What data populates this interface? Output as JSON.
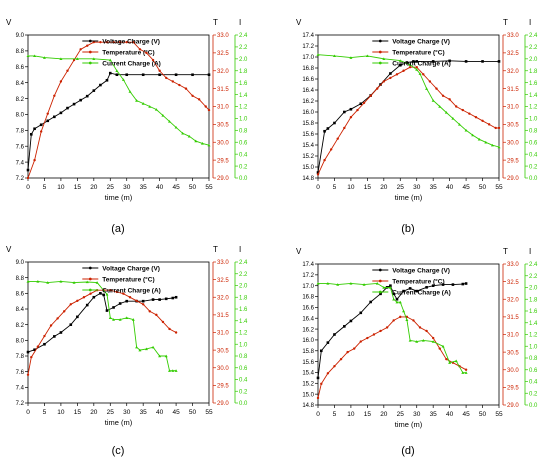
{
  "colors": {
    "voltage": "#000000",
    "temperature": "#cc2200",
    "current": "#33cc00",
    "axis": "#000000"
  },
  "chart_data": [
    {
      "type": "line",
      "panel_label": "(a)",
      "xlabel": "time (m)",
      "axis_units": {
        "voltage": "V",
        "temperature": "T",
        "current": "I"
      },
      "legend_position": "top-center",
      "xlim": [
        0,
        55
      ],
      "xticks": [
        0,
        5,
        10,
        15,
        20,
        25,
        30,
        35,
        40,
        45,
        50,
        55
      ],
      "ylim_voltage": [
        7.2,
        9.0
      ],
      "yticks_voltage": [
        "7.2",
        "7.4",
        "7.6",
        "7.8",
        "8.0",
        "8.2",
        "8.4",
        "8.6",
        "8.8",
        "9.0"
      ],
      "ylim_temperature": [
        29.0,
        33.0
      ],
      "yticks_temperature": [
        "29.0",
        "29.5",
        "30.0",
        "30.5",
        "31.0",
        "31.5",
        "32.0",
        "32.5",
        "33.0"
      ],
      "ylim_current": [
        0.0,
        2.4
      ],
      "yticks_current": [
        "0.0",
        "0.2",
        "0.4",
        "0.6",
        "0.8",
        "1.0",
        "1.2",
        "1.4",
        "1.6",
        "1.8",
        "2.0",
        "2.2",
        "2.4"
      ],
      "series": [
        {
          "name": "Voltage Charge (V)",
          "axis": "voltage",
          "x": [
            0,
            1,
            2,
            4,
            6,
            8,
            10,
            12,
            14,
            16,
            18,
            20,
            22,
            24,
            25,
            27,
            30,
            35,
            40,
            45,
            50,
            55
          ],
          "y": [
            7.3,
            7.75,
            7.82,
            7.87,
            7.92,
            7.97,
            8.02,
            8.08,
            8.13,
            8.18,
            8.23,
            8.3,
            8.37,
            8.43,
            8.52,
            8.5,
            8.5,
            8.5,
            8.5,
            8.5,
            8.5,
            8.5
          ]
        },
        {
          "name": "Temperature (°C)",
          "axis": "temperature",
          "x": [
            0,
            2,
            4,
            6,
            8,
            10,
            12,
            14,
            16,
            18,
            20,
            22,
            24,
            26,
            28,
            30,
            32,
            34,
            36,
            38,
            40,
            42,
            44,
            46,
            48,
            50,
            52,
            54,
            55
          ],
          "y": [
            29.0,
            29.5,
            30.3,
            30.8,
            31.3,
            31.7,
            32.0,
            32.3,
            32.6,
            32.7,
            32.8,
            32.8,
            32.8,
            32.8,
            32.8,
            32.8,
            32.8,
            32.6,
            32.5,
            32.3,
            32.0,
            31.8,
            31.7,
            31.6,
            31.5,
            31.3,
            31.2,
            31.0,
            30.9
          ]
        },
        {
          "name": "Current Charge (A)",
          "axis": "current",
          "x": [
            0,
            2,
            5,
            10,
            15,
            20,
            25,
            27,
            29,
            31,
            33,
            35,
            37,
            39,
            41,
            43,
            45,
            47,
            49,
            51,
            53,
            55
          ],
          "y": [
            2.05,
            2.05,
            2.02,
            2.0,
            2.0,
            2.0,
            1.98,
            1.8,
            1.65,
            1.45,
            1.3,
            1.25,
            1.2,
            1.15,
            1.05,
            0.95,
            0.85,
            0.75,
            0.7,
            0.62,
            0.58,
            0.55
          ]
        }
      ]
    },
    {
      "type": "line",
      "panel_label": "(b)",
      "xlabel": "time (m)",
      "axis_units": {
        "voltage": "V",
        "temperature": "T",
        "current": "I"
      },
      "legend_position": "top-center",
      "xlim": [
        0,
        55
      ],
      "xticks": [
        0,
        5,
        10,
        15,
        20,
        25,
        30,
        35,
        40,
        45,
        50,
        55
      ],
      "ylim_voltage": [
        14.8,
        17.4
      ],
      "yticks_voltage": [
        "14.8",
        "15.0",
        "15.2",
        "15.4",
        "15.6",
        "15.8",
        "16.0",
        "16.2",
        "16.4",
        "16.6",
        "16.8",
        "17.0",
        "17.2",
        "17.4"
      ],
      "ylim_temperature": [
        29.0,
        33.0
      ],
      "yticks_temperature": [
        "29.0",
        "29.5",
        "30.0",
        "30.5",
        "31.0",
        "31.5",
        "32.0",
        "32.5",
        "33.0"
      ],
      "ylim_current": [
        0.0,
        2.4
      ],
      "yticks_current": [
        "0.0",
        "0.2",
        "0.4",
        "0.6",
        "0.8",
        "1.0",
        "1.2",
        "1.4",
        "1.6",
        "1.8",
        "2.0",
        "2.2",
        "2.4"
      ],
      "series": [
        {
          "name": "Voltage Charge (V)",
          "axis": "voltage",
          "x": [
            0,
            2,
            3,
            5,
            8,
            10,
            13,
            16,
            19,
            22,
            25,
            27,
            29,
            30,
            35,
            40,
            45,
            50,
            55
          ],
          "y": [
            14.9,
            15.65,
            15.7,
            15.8,
            16.0,
            16.05,
            16.15,
            16.3,
            16.5,
            16.7,
            16.85,
            16.9,
            16.92,
            16.92,
            16.92,
            16.93,
            16.92,
            16.92,
            16.92
          ]
        },
        {
          "name": "Temperature (°C)",
          "axis": "temperature",
          "x": [
            0,
            2,
            4,
            6,
            8,
            10,
            12,
            14,
            16,
            18,
            20,
            22,
            24,
            26,
            28,
            30,
            32,
            34,
            36,
            38,
            40,
            42,
            44,
            46,
            48,
            50,
            52,
            54,
            55
          ],
          "y": [
            29.1,
            29.5,
            29.8,
            30.1,
            30.4,
            30.7,
            30.9,
            31.1,
            31.3,
            31.5,
            31.7,
            31.8,
            31.9,
            32.0,
            32.1,
            32.1,
            31.9,
            31.7,
            31.5,
            31.3,
            31.2,
            31.0,
            30.9,
            30.8,
            30.7,
            30.6,
            30.5,
            30.4,
            30.4
          ]
        },
        {
          "name": "Current Charge (A)",
          "axis": "current",
          "x": [
            0,
            5,
            10,
            15,
            20,
            25,
            28,
            30,
            31,
            33,
            35,
            37,
            39,
            41,
            43,
            45,
            47,
            49,
            51,
            53,
            55
          ],
          "y": [
            2.07,
            2.05,
            2.02,
            2.05,
            2.0,
            1.97,
            1.9,
            1.82,
            1.75,
            1.5,
            1.3,
            1.2,
            1.1,
            1.0,
            0.9,
            0.8,
            0.72,
            0.65,
            0.6,
            0.55,
            0.52
          ]
        }
      ]
    },
    {
      "type": "line",
      "panel_label": "(c)",
      "xlabel": "time (m)",
      "axis_units": {
        "voltage": "V",
        "temperature": "T",
        "current": "I"
      },
      "legend_position": "top-center",
      "xlim": [
        0,
        55
      ],
      "xticks": [
        0,
        5,
        10,
        15,
        20,
        25,
        30,
        35,
        40,
        45,
        50,
        55
      ],
      "ylim_voltage": [
        7.2,
        9.0
      ],
      "yticks_voltage": [
        "7.2",
        "7.4",
        "7.6",
        "7.8",
        "8.0",
        "8.2",
        "8.4",
        "8.6",
        "8.8",
        "9.0"
      ],
      "ylim_temperature": [
        29.0,
        33.0
      ],
      "yticks_temperature": [
        "29.0",
        "29.5",
        "30.0",
        "30.5",
        "31.0",
        "31.5",
        "32.0",
        "32.5",
        "33.0"
      ],
      "ylim_current": [
        0.0,
        2.4
      ],
      "yticks_current": [
        "0.0",
        "0.2",
        "0.4",
        "0.6",
        "0.8",
        "1.0",
        "1.2",
        "1.4",
        "1.6",
        "1.8",
        "2.0",
        "2.2",
        "2.4"
      ],
      "series": [
        {
          "name": "Voltage Charge (V)",
          "axis": "voltage",
          "x": [
            0,
            2,
            5,
            8,
            10,
            13,
            15,
            18,
            20,
            22,
            23,
            24,
            26,
            28,
            30,
            33,
            35,
            38,
            40,
            42,
            44,
            45
          ],
          "y": [
            7.85,
            7.88,
            7.95,
            8.05,
            8.1,
            8.2,
            8.3,
            8.45,
            8.55,
            8.6,
            8.58,
            8.38,
            8.42,
            8.47,
            8.5,
            8.5,
            8.5,
            8.52,
            8.52,
            8.53,
            8.54,
            8.55
          ]
        },
        {
          "name": "Temperature (°C)",
          "axis": "temperature",
          "x": [
            0,
            1,
            3,
            5,
            7,
            9,
            11,
            13,
            15,
            17,
            19,
            21,
            23,
            25,
            27,
            29,
            31,
            33,
            35,
            37,
            39,
            41,
            43,
            45
          ],
          "y": [
            29.8,
            30.3,
            30.6,
            30.9,
            31.2,
            31.4,
            31.6,
            31.8,
            31.9,
            32.0,
            32.1,
            32.2,
            32.2,
            32.2,
            32.15,
            32.1,
            32.0,
            31.9,
            31.8,
            31.6,
            31.5,
            31.3,
            31.1,
            31.0
          ]
        },
        {
          "name": "Current Charge (A)",
          "axis": "current",
          "x": [
            0,
            3,
            6,
            10,
            14,
            18,
            21,
            24,
            25,
            26,
            28,
            30,
            32,
            33,
            34,
            36,
            38,
            40,
            42,
            43,
            44,
            45
          ],
          "y": [
            2.07,
            2.07,
            2.05,
            2.07,
            2.05,
            2.06,
            2.05,
            1.85,
            1.45,
            1.42,
            1.42,
            1.45,
            1.42,
            0.95,
            0.9,
            0.92,
            0.95,
            0.8,
            0.8,
            0.55,
            0.55,
            0.55
          ]
        }
      ]
    },
    {
      "type": "line",
      "panel_label": "(d)",
      "xlabel": "time (m)",
      "axis_units": {
        "voltage": "V",
        "temperature": "T",
        "current": "I"
      },
      "legend_position": "top-center",
      "xlim": [
        0,
        55
      ],
      "xticks": [
        0,
        5,
        10,
        15,
        20,
        25,
        30,
        35,
        40,
        45,
        50,
        55
      ],
      "ylim_voltage": [
        14.8,
        17.4
      ],
      "yticks_voltage": [
        "14.8",
        "15.0",
        "15.2",
        "15.4",
        "15.6",
        "15.8",
        "16.0",
        "16.2",
        "16.4",
        "16.6",
        "16.8",
        "17.0",
        "17.2",
        "17.4"
      ],
      "ylim_temperature": [
        29.0,
        33.0
      ],
      "yticks_temperature": [
        "29.0",
        "29.5",
        "30.0",
        "30.5",
        "31.0",
        "31.5",
        "32.0",
        "32.5",
        "33.0"
      ],
      "ylim_current": [
        0.0,
        2.4
      ],
      "yticks_current": [
        "0.0",
        "0.2",
        "0.4",
        "0.6",
        "0.8",
        "1.0",
        "1.2",
        "1.4",
        "1.6",
        "1.8",
        "2.0",
        "2.2",
        "2.4"
      ],
      "series": [
        {
          "name": "Voltage Charge (V)",
          "axis": "voltage",
          "x": [
            0,
            1,
            3,
            5,
            8,
            10,
            13,
            16,
            19,
            21,
            22,
            23,
            24,
            26,
            28,
            30,
            33,
            35,
            38,
            41,
            44,
            45
          ],
          "y": [
            15.3,
            15.8,
            15.95,
            16.1,
            16.25,
            16.35,
            16.5,
            16.7,
            16.85,
            16.97,
            17.0,
            16.85,
            16.75,
            16.9,
            16.95,
            16.9,
            16.97,
            17.0,
            17.02,
            17.02,
            17.03,
            17.04
          ]
        },
        {
          "name": "Temperature (°C)",
          "axis": "temperature",
          "x": [
            0,
            1,
            3,
            5,
            7,
            9,
            11,
            13,
            15,
            17,
            19,
            21,
            23,
            25,
            27,
            29,
            31,
            33,
            35,
            37,
            39,
            41,
            43,
            45
          ],
          "y": [
            29.2,
            29.6,
            29.9,
            30.1,
            30.3,
            30.5,
            30.6,
            30.8,
            30.9,
            31.0,
            31.1,
            31.2,
            31.4,
            31.5,
            31.5,
            31.4,
            31.2,
            31.1,
            30.9,
            30.6,
            30.3,
            30.2,
            30.1,
            30.0
          ]
        },
        {
          "name": "Current Charge (A)",
          "axis": "current",
          "x": [
            0,
            3,
            6,
            10,
            14,
            18,
            20,
            22,
            23,
            24,
            25,
            26,
            27,
            28,
            30,
            32,
            35,
            38,
            40,
            42,
            44,
            45
          ],
          "y": [
            2.07,
            2.07,
            2.05,
            2.07,
            2.05,
            2.07,
            2.0,
            2.0,
            1.8,
            1.75,
            1.75,
            1.6,
            1.45,
            1.1,
            1.08,
            1.1,
            1.08,
            1.0,
            0.72,
            0.75,
            0.55,
            0.55
          ]
        }
      ]
    }
  ]
}
